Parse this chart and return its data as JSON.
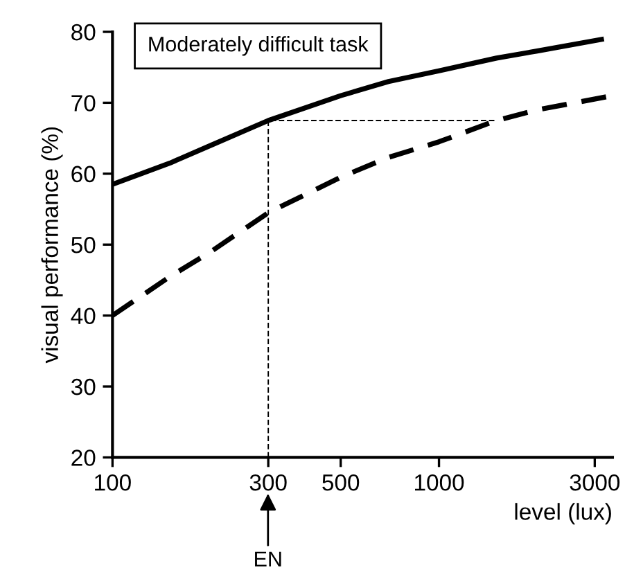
{
  "chart_data": {
    "type": "line",
    "xlabel": "level (lux)",
    "ylabel": "visual performance (%)",
    "log": "x",
    "grid": false,
    "legend": false,
    "marker": "none",
    "xlim": [
      100,
      3400
    ],
    "xticks": [
      100,
      300,
      500,
      1000,
      3000
    ],
    "ylim": [
      20,
      80
    ],
    "yticks": [
      20,
      30,
      40,
      50,
      60,
      70,
      80
    ],
    "series": [
      {
        "color": "#000000",
        "line_style": "solid",
        "x": [
          100,
          150,
          200,
          300,
          500,
          700,
          1000,
          1500,
          2000,
          3200
        ],
        "values": [
          58.5,
          61.5,
          64,
          67.5,
          71,
          73,
          74.5,
          76.3,
          77.3,
          79
        ]
      },
      {
        "color": "#000000",
        "line_style": "dashed",
        "x": [
          100,
          150,
          200,
          300,
          500,
          700,
          1000,
          1500,
          2000,
          3400
        ],
        "values": [
          40,
          45.5,
          49,
          54.5,
          59.5,
          62.3,
          64.5,
          67.5,
          69,
          71
        ]
      },
      {
        "color": "#000000",
        "line_style": "dotted",
        "x": [
          300,
          300,
          1500
        ],
        "values": [
          20,
          67.5,
          67.5
        ]
      }
    ],
    "annotations": [
      "Moderately difficult task",
      "EN"
    ]
  }
}
